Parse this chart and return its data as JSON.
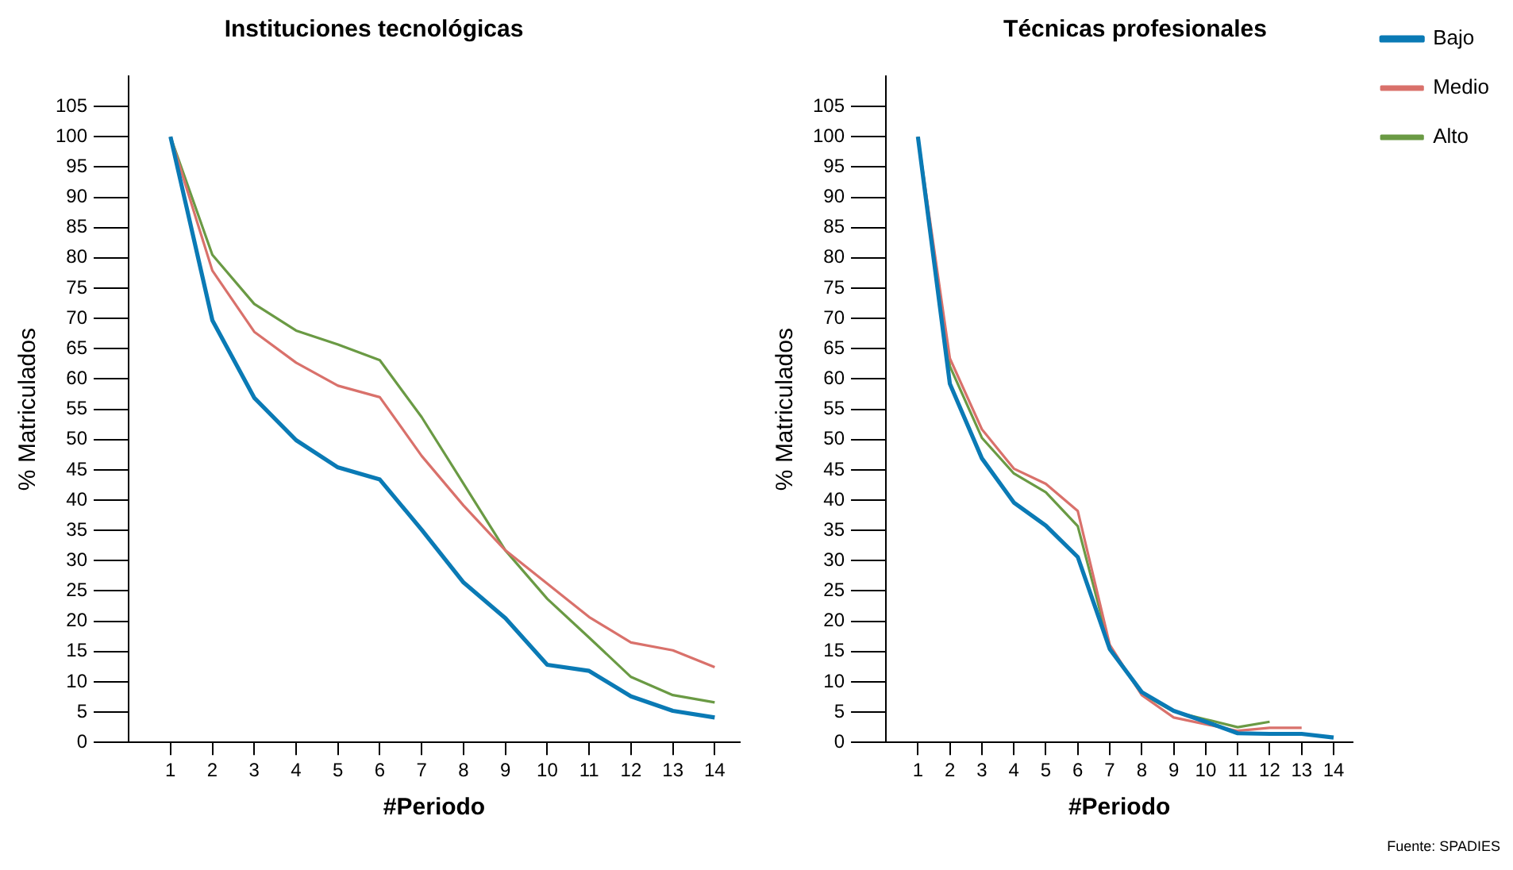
{
  "chart_data": [
    {
      "type": "line",
      "title": "Instituciones tecnológicas",
      "xlabel": "#Periodo",
      "ylabel": "% Matriculados",
      "marker": "none",
      "legend": false,
      "x": [
        1,
        2,
        3,
        4,
        5,
        6,
        7,
        8,
        9,
        10,
        11,
        12,
        13,
        14
      ],
      "xlim": [
        0,
        14.6
      ],
      "xticks": [
        1,
        2,
        3,
        4,
        5,
        6,
        7,
        8,
        9,
        10,
        11,
        12,
        13,
        14
      ],
      "ylim": [
        0,
        110
      ],
      "yticks": [
        0,
        5,
        10,
        15,
        20,
        25,
        30,
        35,
        40,
        45,
        50,
        55,
        60,
        65,
        70,
        75,
        80,
        85,
        90,
        95,
        100,
        105
      ],
      "series": [
        {
          "color": "#0a7ab5",
          "values": [
            100,
            69.7,
            56.9,
            49.9,
            45.4,
            43.4,
            35.1,
            26.4,
            20.5,
            12.8,
            11.8,
            7.6,
            5.2,
            4.1
          ]
        },
        {
          "color": "#d9716b",
          "values": [
            100,
            77.9,
            67.8,
            62.7,
            58.9,
            57.0,
            47.3,
            39.1,
            31.7,
            26.2,
            20.7,
            16.5,
            15.2,
            12.4
          ]
        },
        {
          "color": "#6a9a44",
          "values": [
            100,
            80.5,
            72.4,
            68.0,
            65.7,
            63.1,
            53.7,
            42.7,
            31.7,
            23.7,
            17.3,
            10.8,
            7.8,
            6.6
          ]
        }
      ]
    },
    {
      "type": "line",
      "title": "Técnicas profesionales",
      "xlabel": "#Periodo",
      "ylabel": "% Matriculados",
      "marker": "none",
      "legend": "top right",
      "x": [
        1,
        2,
        3,
        4,
        5,
        6,
        7,
        8,
        9,
        10,
        11,
        12,
        13,
        14
      ],
      "xlim": [
        0,
        14.6
      ],
      "xticks": [
        1,
        2,
        3,
        4,
        5,
        6,
        7,
        8,
        9,
        10,
        11,
        12,
        13,
        14
      ],
      "ylim": [
        0,
        110
      ],
      "yticks": [
        0,
        5,
        10,
        15,
        20,
        25,
        30,
        35,
        40,
        45,
        50,
        55,
        60,
        65,
        70,
        75,
        80,
        85,
        90,
        95,
        100,
        105
      ],
      "annotations": [
        "Fuente: SPADIES"
      ],
      "series": [
        {
          "name": "Bajo",
          "color": "#0a7ab5",
          "values": [
            100,
            59.2,
            46.9,
            39.6,
            35.8,
            30.6,
            15.4,
            8.3,
            5.2,
            3.4,
            1.5,
            1.4,
            1.4,
            0.8
          ]
        },
        {
          "name": "Medio",
          "color": "#d9716b",
          "values": [
            100,
            63.4,
            51.7,
            45.2,
            42.7,
            38.2,
            16.1,
            7.8,
            4.1,
            3.0,
            1.9,
            2.4,
            2.4,
            null
          ]
        },
        {
          "name": "Alto",
          "color": "#6a9a44",
          "values": [
            100,
            62.1,
            50.3,
            44.4,
            41.3,
            35.7,
            15.6,
            8.0,
            5.1,
            3.8,
            2.5,
            3.4,
            null,
            null
          ]
        }
      ]
    }
  ]
}
